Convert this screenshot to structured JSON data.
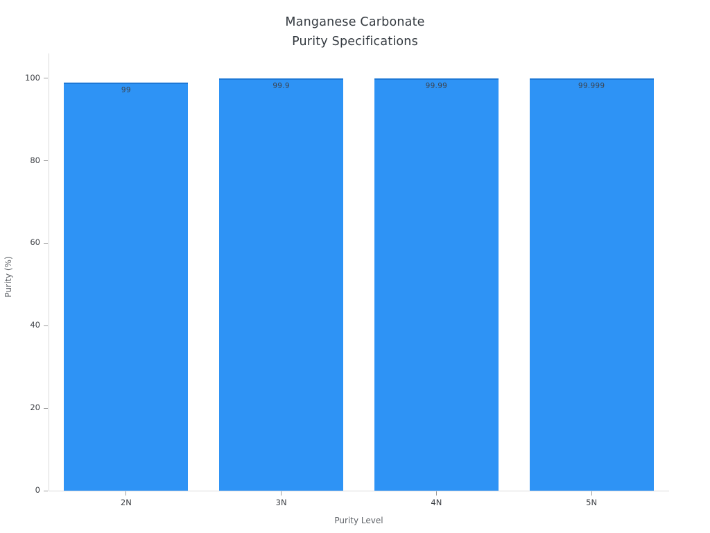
{
  "chart_data": {
    "type": "bar",
    "title": "Manganese Carbonate\nPurity Specifications",
    "title_lines": [
      "Manganese Carbonate",
      "Purity Specifications"
    ],
    "xlabel": "Purity Level",
    "ylabel": "Purity (%)",
    "categories": [
      "2N",
      "3N",
      "4N",
      "5N"
    ],
    "values": [
      99,
      99.9,
      99.99,
      99.999
    ],
    "value_labels": [
      "99",
      "99.9",
      "99.99",
      "99.999"
    ],
    "yticks": [
      0,
      20,
      40,
      60,
      80,
      100
    ],
    "ytick_labels": [
      "0",
      "20",
      "40",
      "60",
      "80",
      "100"
    ],
    "ylim": [
      0,
      106
    ],
    "grid": false,
    "legend": false,
    "bar_color": "#2E93F5",
    "bar_edge_color": "#1d78d6",
    "value_label_color": "#3c4450",
    "tick_label_color": "#3c3f44",
    "axis_title_color": "#5f6368",
    "title_color": "#343a40",
    "background_color": "#ffffff"
  }
}
